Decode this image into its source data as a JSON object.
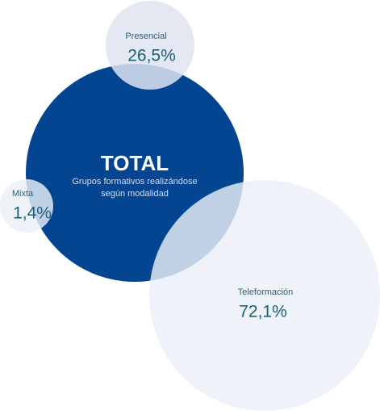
{
  "total": {
    "title": "TOTAL",
    "description": [
      "Grupos formativos realizándose",
      "según modalidad"
    ]
  },
  "nodes": [
    {
      "label": "Presencial",
      "value": "26,5%"
    },
    {
      "label": "Mixta",
      "value": "1,4%"
    },
    {
      "label": "Teleformación",
      "value": "72,1%"
    }
  ]
}
